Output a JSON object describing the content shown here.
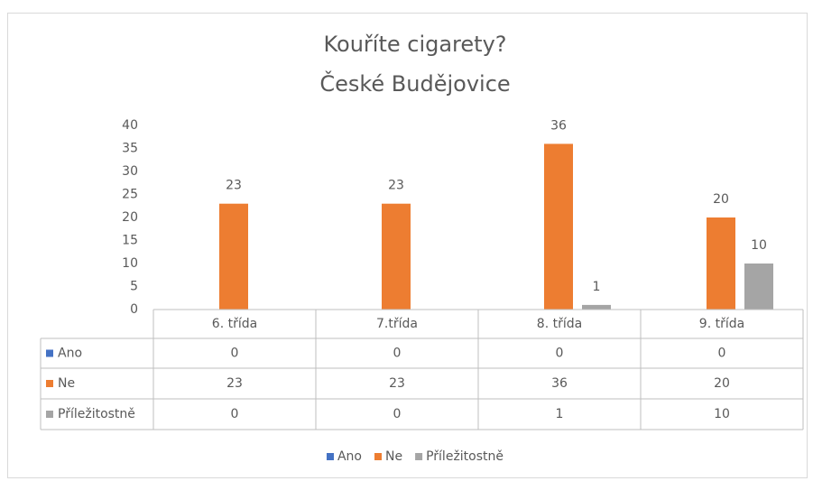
{
  "chart_data": {
    "type": "bar",
    "title": "Kouříte cigarety?",
    "subtitle": "České Budějovice",
    "categories": [
      "6. třída",
      "7.třída",
      "8. třída",
      "9. třída"
    ],
    "series": [
      {
        "name": "Ano",
        "color": "#4472c4",
        "values": [
          0,
          0,
          0,
          0
        ]
      },
      {
        "name": "Ne",
        "color": "#ed7d31",
        "values": [
          23,
          23,
          36,
          20
        ]
      },
      {
        "name": "Příležitostně",
        "color": "#a5a5a5",
        "values": [
          0,
          0,
          1,
          10
        ]
      }
    ],
    "ylim": [
      0,
      40
    ],
    "yticks": [
      0,
      5,
      10,
      15,
      20,
      25,
      30,
      35,
      40
    ],
    "grid": false,
    "legend": "bottom"
  }
}
